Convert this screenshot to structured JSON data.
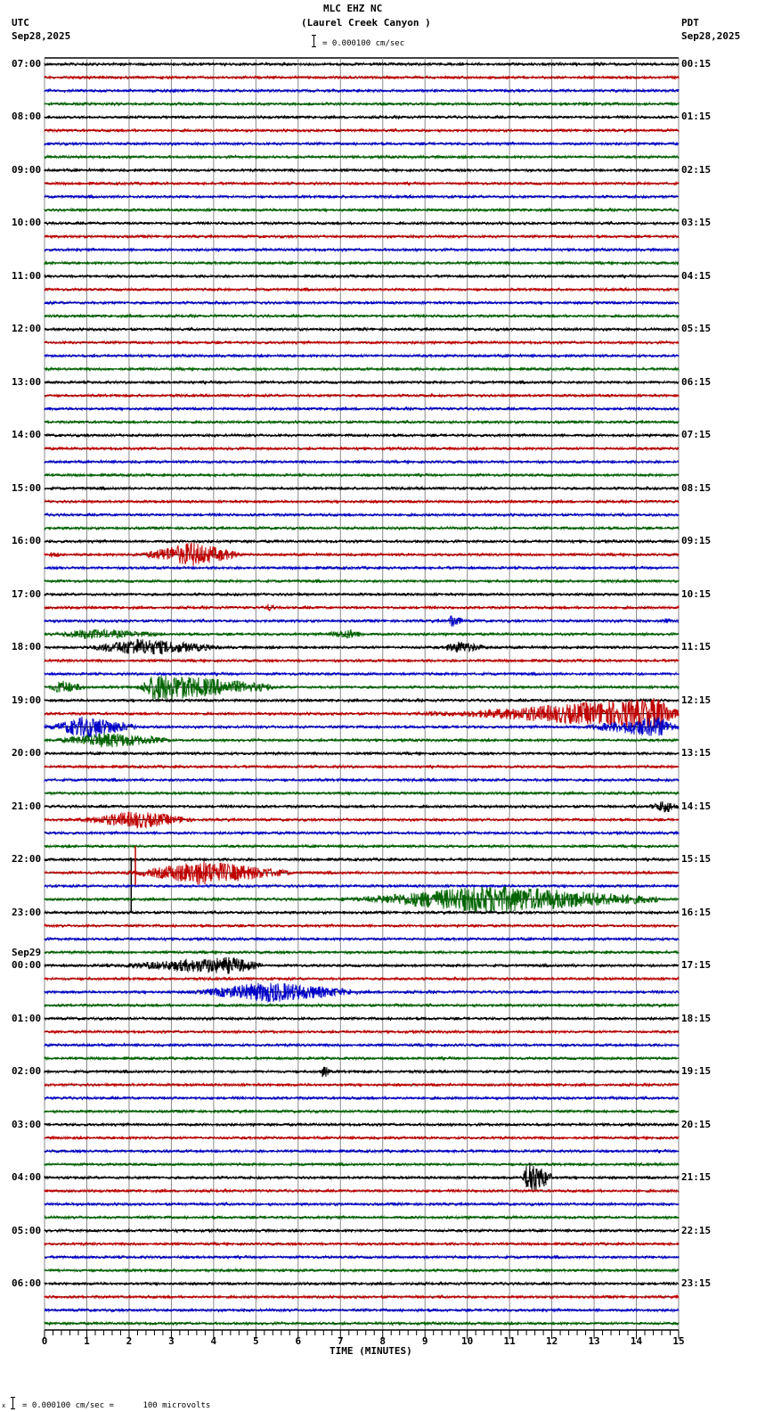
{
  "header": {
    "station": "MLC EHZ NC",
    "location": "(Laurel Creek Canyon )",
    "scale_text": "= 0.000100 cm/sec",
    "left_tz": "UTC",
    "left_date": "Sep28,2025",
    "right_tz": "PDT",
    "right_date": "Sep28,2025"
  },
  "footer": {
    "prefix": "x",
    "scale_text": "= 0.000100 cm/sec =      100 microvolts"
  },
  "chart_data": {
    "type": "line",
    "title": "MLC EHZ NC (Laurel Creek Canyon )",
    "subtitle": "= 0.000100 cm/sec",
    "xlabel": "TIME (MINUTES)",
    "ylabel": "",
    "xlim": [
      0,
      15
    ],
    "x_ticks": [
      "0",
      "1",
      "2",
      "3",
      "4",
      "5",
      "6",
      "7",
      "8",
      "9",
      "10",
      "11",
      "12",
      "13",
      "14",
      "15"
    ],
    "minor_ticks_per_minute": 5,
    "grid": true,
    "traces_per_hour": 4,
    "trace_colors": [
      "#000000",
      "#c00000",
      "#0000c8",
      "#006400"
    ],
    "left_labels": [
      {
        "row": 0,
        "text": "07:00"
      },
      {
        "row": 4,
        "text": "08:00"
      },
      {
        "row": 8,
        "text": "09:00"
      },
      {
        "row": 12,
        "text": "10:00"
      },
      {
        "row": 16,
        "text": "11:00"
      },
      {
        "row": 20,
        "text": "12:00"
      },
      {
        "row": 24,
        "text": "13:00"
      },
      {
        "row": 28,
        "text": "14:00"
      },
      {
        "row": 32,
        "text": "15:00"
      },
      {
        "row": 36,
        "text": "16:00"
      },
      {
        "row": 40,
        "text": "17:00"
      },
      {
        "row": 44,
        "text": "18:00"
      },
      {
        "row": 48,
        "text": "19:00"
      },
      {
        "row": 52,
        "text": "20:00"
      },
      {
        "row": 56,
        "text": "21:00"
      },
      {
        "row": 60,
        "text": "22:00"
      },
      {
        "row": 64,
        "text": "23:00"
      },
      {
        "row": 68,
        "text": "00:00",
        "date": "Sep29"
      },
      {
        "row": 72,
        "text": "01:00"
      },
      {
        "row": 76,
        "text": "02:00"
      },
      {
        "row": 80,
        "text": "03:00"
      },
      {
        "row": 84,
        "text": "04:00"
      },
      {
        "row": 88,
        "text": "05:00"
      },
      {
        "row": 92,
        "text": "06:00"
      }
    ],
    "right_labels": [
      {
        "row": 0,
        "text": "00:15"
      },
      {
        "row": 4,
        "text": "01:15"
      },
      {
        "row": 8,
        "text": "02:15"
      },
      {
        "row": 12,
        "text": "03:15"
      },
      {
        "row": 16,
        "text": "04:15"
      },
      {
        "row": 20,
        "text": "05:15"
      },
      {
        "row": 24,
        "text": "06:15"
      },
      {
        "row": 28,
        "text": "07:15"
      },
      {
        "row": 32,
        "text": "08:15"
      },
      {
        "row": 36,
        "text": "09:15"
      },
      {
        "row": 40,
        "text": "10:15"
      },
      {
        "row": 44,
        "text": "11:15"
      },
      {
        "row": 48,
        "text": "12:15"
      },
      {
        "row": 52,
        "text": "13:15"
      },
      {
        "row": 56,
        "text": "14:15"
      },
      {
        "row": 60,
        "text": "15:15"
      },
      {
        "row": 64,
        "text": "16:15"
      },
      {
        "row": 68,
        "text": "17:15"
      },
      {
        "row": 72,
        "text": "18:15"
      },
      {
        "row": 76,
        "text": "19:15"
      },
      {
        "row": 80,
        "text": "20:15"
      },
      {
        "row": 84,
        "text": "21:15"
      },
      {
        "row": 88,
        "text": "22:15"
      },
      {
        "row": 92,
        "text": "23:15"
      }
    ],
    "events": [
      {
        "row": 37,
        "start": 2.1,
        "end": 4.6,
        "peak": 3.5,
        "amp": 14
      },
      {
        "row": 37,
        "start": 0.0,
        "end": 0.6,
        "peak": 0.2,
        "amp": 3
      },
      {
        "row": 41,
        "start": 5.2,
        "end": 5.5,
        "peak": 5.3,
        "amp": 5
      },
      {
        "row": 42,
        "start": 9.55,
        "end": 9.9,
        "peak": 9.6,
        "amp": 10
      },
      {
        "row": 42,
        "start": 14.3,
        "end": 15.0,
        "peak": 14.7,
        "amp": 3
      },
      {
        "row": 43,
        "start": 0.0,
        "end": 3.0,
        "peak": 1.0,
        "amp": 6
      },
      {
        "row": 43,
        "start": 6.5,
        "end": 7.6,
        "peak": 7.2,
        "amp": 6
      },
      {
        "row": 44,
        "start": 0.8,
        "end": 4.2,
        "peak": 2.2,
        "amp": 10
      },
      {
        "row": 44,
        "start": 9.3,
        "end": 10.5,
        "peak": 9.8,
        "amp": 7
      },
      {
        "row": 47,
        "start": 0.0,
        "end": 1.0,
        "peak": 0.4,
        "amp": 8
      },
      {
        "row": 47,
        "start": 2.2,
        "end": 5.4,
        "peak": 2.6,
        "amp": 16
      },
      {
        "row": 49,
        "start": 9.0,
        "end": 15.0,
        "peak": 14.5,
        "amp": 18
      },
      {
        "row": 50,
        "start": 0.0,
        "end": 2.2,
        "peak": 1.0,
        "amp": 13
      },
      {
        "row": 50,
        "start": 12.5,
        "end": 15.0,
        "peak": 14.5,
        "amp": 12
      },
      {
        "row": 51,
        "start": 0.0,
        "end": 3.0,
        "peak": 1.5,
        "amp": 9
      },
      {
        "row": 56,
        "start": 14.2,
        "end": 15.0,
        "peak": 14.7,
        "amp": 8
      },
      {
        "row": 57,
        "start": 0.5,
        "end": 3.5,
        "peak": 2.2,
        "amp": 10
      },
      {
        "row": 61,
        "start": 1.9,
        "end": 5.8,
        "peak": 3.7,
        "amp": 14
      },
      {
        "row": 63,
        "start": 7.0,
        "end": 14.5,
        "peak": 10.5,
        "amp": 16
      },
      {
        "row": 68,
        "start": 1.2,
        "end": 5.2,
        "peak": 4.4,
        "amp": 10
      },
      {
        "row": 70,
        "start": 3.3,
        "end": 7.4,
        "peak": 5.3,
        "amp": 12
      },
      {
        "row": 76,
        "start": 6.5,
        "end": 6.75,
        "peak": 6.6,
        "amp": 9
      },
      {
        "row": 84,
        "start": 11.3,
        "end": 12.0,
        "peak": 11.45,
        "amp": 22
      }
    ],
    "spikes": [
      {
        "row": 60,
        "x": 2.05,
        "up": 2,
        "down": 60
      },
      {
        "row": 61,
        "x": 2.15,
        "up": 30,
        "down": 15
      }
    ]
  }
}
